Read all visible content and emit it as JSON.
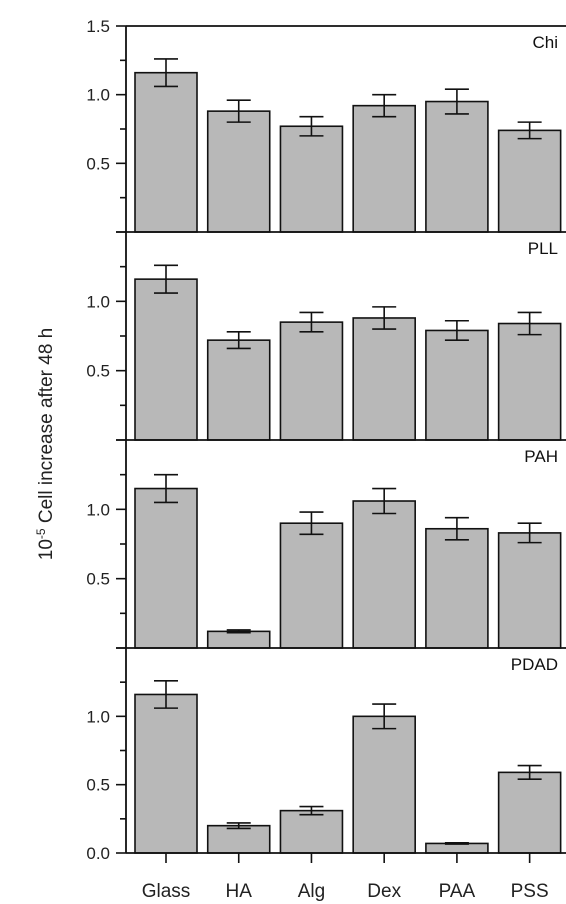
{
  "chart_data": {
    "type": "bar",
    "ylabel_base": "10",
    "ylabel_exponent": "-5",
    "ylabel_text": " Cell increase after 48 h",
    "categories": [
      "Glass",
      "HA",
      "Alg",
      "Dex",
      "PAA",
      "PSS"
    ],
    "bar_color": "#b8b8b8",
    "panels": [
      {
        "label": "Chi",
        "ylim": [
          0,
          1.5
        ],
        "tick_labels": [
          "0.5",
          "1.0",
          "1.5"
        ],
        "values": [
          1.16,
          0.88,
          0.77,
          0.92,
          0.95,
          0.74
        ],
        "errors": [
          0.1,
          0.08,
          0.07,
          0.08,
          0.09,
          0.06
        ]
      },
      {
        "label": "PLL",
        "ylim": [
          0,
          1.5
        ],
        "tick_labels": [
          "0.5",
          "1.0"
        ],
        "values": [
          1.16,
          0.72,
          0.85,
          0.88,
          0.79,
          0.84
        ],
        "errors": [
          0.1,
          0.06,
          0.07,
          0.08,
          0.07,
          0.08
        ]
      },
      {
        "label": "PAH",
        "ylim": [
          0,
          1.5
        ],
        "tick_labels": [
          "0.5",
          "1.0"
        ],
        "values": [
          1.15,
          0.12,
          0.9,
          1.06,
          0.86,
          0.83
        ],
        "errors": [
          0.1,
          0.01,
          0.08,
          0.09,
          0.08,
          0.07
        ]
      },
      {
        "label": "PDAD",
        "ylim": [
          0,
          1.5
        ],
        "tick_labels": [
          "0.0",
          "0.5",
          "1.0"
        ],
        "values": [
          1.16,
          0.2,
          0.31,
          1.0,
          0.07,
          0.59
        ],
        "errors": [
          0.1,
          0.02,
          0.03,
          0.09,
          0.005,
          0.05
        ]
      }
    ]
  }
}
